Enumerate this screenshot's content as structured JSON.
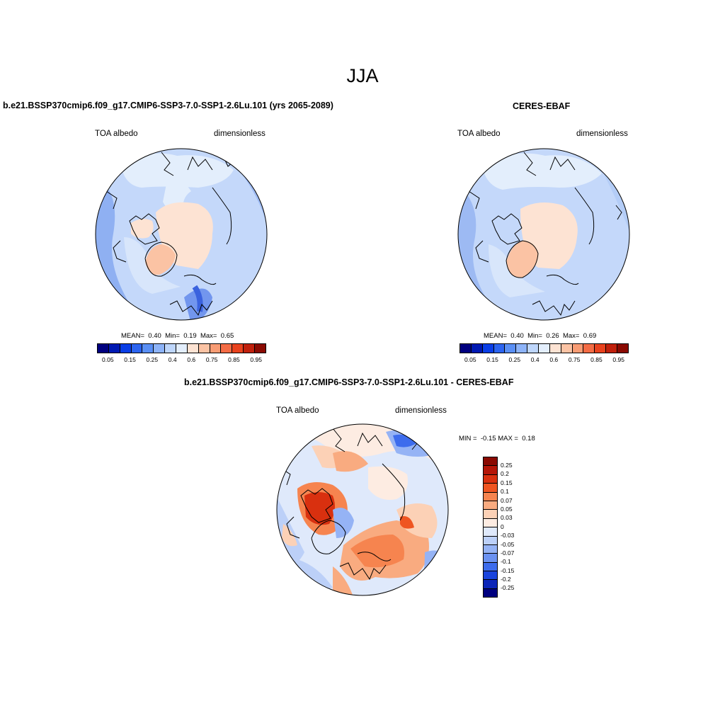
{
  "figure": {
    "title": "JJA"
  },
  "panel_left": {
    "title": "b.e21.BSSP370cmip6.f09_g17.CMIP6-SSP3-7.0-SSP1-2.6Lu.101 (yrs 2065-2089)",
    "variable": "TOA albedo",
    "units": "dimensionless",
    "stats": {
      "mean_label": "MEAN=",
      "mean": "0.40",
      "min_label": "Min=",
      "min": "0.19",
      "max_label": "Max=",
      "max": "0.65"
    }
  },
  "panel_right": {
    "title": "CERES-EBAF",
    "variable": "TOA albedo",
    "units": "dimensionless",
    "stats": {
      "mean_label": "MEAN=",
      "mean": "0.40",
      "min_label": "Min=",
      "min": "0.26",
      "max_label": "Max=",
      "max": "0.69"
    }
  },
  "panel_diff": {
    "title": "b.e21.BSSP370cmip6.f09_g17.CMIP6-SSP3-7.0-SSP1-2.6Lu.101 - CERES-EBAF",
    "variable": "TOA albedo",
    "units": "dimensionless",
    "minmax": {
      "min_label": "MIN =",
      "min": "-0.15",
      "max_label": "MAX =",
      "max": "0.18"
    }
  },
  "colorbar_abs": {
    "colors": [
      "#00007f",
      "#0019b2",
      "#0a3ee6",
      "#2c64f0",
      "#5a8ff4",
      "#8db3f8",
      "#bed6fb",
      "#e3eefc",
      "#fde3d3",
      "#fbc3a4",
      "#f89c74",
      "#f46c45",
      "#e8421e",
      "#c0200c",
      "#8a0a02"
    ],
    "labels": [
      "0.05",
      "0.15",
      "0.25",
      "0.4",
      "0.6",
      "0.75",
      "0.85",
      "0.95"
    ]
  },
  "colorbar_diff": {
    "colors": [
      "#8a0a02",
      "#b41608",
      "#d9300f",
      "#ef5521",
      "#f6844f",
      "#f9ab80",
      "#fcd1b6",
      "#fdece2",
      "#dfe9fb",
      "#bcd0f8",
      "#95b3f5",
      "#6b92f2",
      "#3d6ced",
      "#1a44dd",
      "#0c25b8",
      "#00007f"
    ],
    "labels": [
      "0.25",
      "0.2",
      "0.15",
      "0.1",
      "0.07",
      "0.05",
      "0.03",
      "0",
      "-0.03",
      "-0.05",
      "-0.07",
      "-0.1",
      "-0.15",
      "-0.2",
      "-0.25"
    ]
  },
  "chart_data": {
    "type": "heatmap",
    "title": "JJA",
    "projection": "north-polar-stereographic",
    "panels": [
      {
        "name": "model",
        "variable": "TOA albedo",
        "units": "dimensionless",
        "mean": 0.4,
        "min": 0.19,
        "max": 0.65
      },
      {
        "name": "CERES-EBAF",
        "variable": "TOA albedo",
        "units": "dimensionless",
        "mean": 0.4,
        "min": 0.26,
        "max": 0.69
      },
      {
        "name": "difference",
        "variable": "TOA albedo",
        "units": "dimensionless",
        "min": -0.15,
        "max": 0.18
      }
    ]
  }
}
